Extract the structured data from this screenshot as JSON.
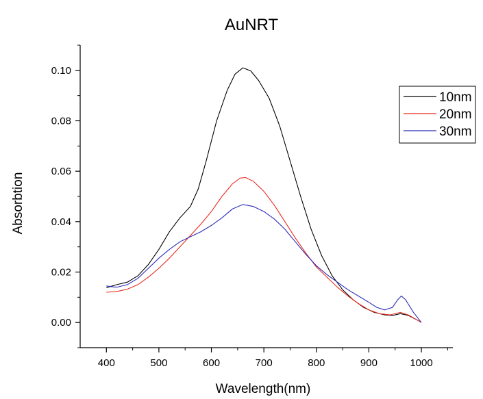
{
  "chart_data": {
    "type": "line",
    "title": "AuNRT",
    "xlabel": "Wavelength(nm)",
    "ylabel": "Absorbtion",
    "xlim": [
      350,
      1060
    ],
    "ylim": [
      -0.01,
      0.11
    ],
    "xticks": [
      400,
      500,
      600,
      700,
      800,
      900,
      1000
    ],
    "xtick_labels": [
      "400",
      "500",
      "600",
      "700",
      "800",
      "900",
      "1000"
    ],
    "yticks": [
      0.0,
      0.02,
      0.04,
      0.06,
      0.08,
      0.1
    ],
    "ytick_labels": [
      "0.00",
      "0.02",
      "0.04",
      "0.06",
      "0.08",
      "0.10"
    ],
    "grid": false,
    "legend_position": "top-right",
    "series": [
      {
        "name": "10nm",
        "color": "#000000",
        "points": [
          [
            400,
            0.0138
          ],
          [
            420,
            0.015
          ],
          [
            440,
            0.016
          ],
          [
            460,
            0.0185
          ],
          [
            480,
            0.023
          ],
          [
            500,
            0.029
          ],
          [
            520,
            0.036
          ],
          [
            540,
            0.0415
          ],
          [
            560,
            0.046
          ],
          [
            575,
            0.053
          ],
          [
            590,
            0.064
          ],
          [
            610,
            0.08
          ],
          [
            630,
            0.092
          ],
          [
            645,
            0.0985
          ],
          [
            660,
            0.101
          ],
          [
            675,
            0.0998
          ],
          [
            690,
            0.096
          ],
          [
            710,
            0.089
          ],
          [
            730,
            0.078
          ],
          [
            750,
            0.064
          ],
          [
            770,
            0.05
          ],
          [
            790,
            0.037
          ],
          [
            810,
            0.0265
          ],
          [
            830,
            0.0185
          ],
          [
            850,
            0.013
          ],
          [
            870,
            0.009
          ],
          [
            890,
            0.006
          ],
          [
            910,
            0.004
          ],
          [
            930,
            0.003
          ],
          [
            945,
            0.0028
          ],
          [
            960,
            0.0035
          ],
          [
            975,
            0.0028
          ],
          [
            990,
            0.0012
          ],
          [
            1000,
            0.0
          ]
        ]
      },
      {
        "name": "20nm",
        "color": "#e8291c",
        "points": [
          [
            400,
            0.012
          ],
          [
            420,
            0.0123
          ],
          [
            440,
            0.0132
          ],
          [
            460,
            0.015
          ],
          [
            480,
            0.018
          ],
          [
            500,
            0.0215
          ],
          [
            520,
            0.0255
          ],
          [
            540,
            0.03
          ],
          [
            560,
            0.0345
          ],
          [
            580,
            0.039
          ],
          [
            600,
            0.044
          ],
          [
            620,
            0.05
          ],
          [
            640,
            0.055
          ],
          [
            655,
            0.0573
          ],
          [
            665,
            0.0575
          ],
          [
            680,
            0.056
          ],
          [
            700,
            0.052
          ],
          [
            720,
            0.0465
          ],
          [
            740,
            0.04
          ],
          [
            760,
            0.0335
          ],
          [
            780,
            0.0275
          ],
          [
            800,
            0.022
          ],
          [
            820,
            0.018
          ],
          [
            840,
            0.014
          ],
          [
            860,
            0.0105
          ],
          [
            880,
            0.0075
          ],
          [
            900,
            0.005
          ],
          [
            920,
            0.0035
          ],
          [
            940,
            0.003
          ],
          [
            960,
            0.004
          ],
          [
            975,
            0.003
          ],
          [
            990,
            0.0012
          ],
          [
            1000,
            0.0
          ]
        ]
      },
      {
        "name": "30nm",
        "color": "#2a2ab8",
        "points": [
          [
            400,
            0.0145
          ],
          [
            410,
            0.0142
          ],
          [
            420,
            0.014
          ],
          [
            440,
            0.015
          ],
          [
            460,
            0.0175
          ],
          [
            480,
            0.0215
          ],
          [
            500,
            0.0255
          ],
          [
            520,
            0.029
          ],
          [
            540,
            0.032
          ],
          [
            560,
            0.034
          ],
          [
            580,
            0.036
          ],
          [
            600,
            0.0385
          ],
          [
            620,
            0.0415
          ],
          [
            640,
            0.045
          ],
          [
            660,
            0.0468
          ],
          [
            680,
            0.046
          ],
          [
            700,
            0.044
          ],
          [
            720,
            0.041
          ],
          [
            740,
            0.037
          ],
          [
            760,
            0.032
          ],
          [
            780,
            0.027
          ],
          [
            800,
            0.0225
          ],
          [
            820,
            0.019
          ],
          [
            840,
            0.016
          ],
          [
            860,
            0.013
          ],
          [
            880,
            0.0105
          ],
          [
            900,
            0.008
          ],
          [
            915,
            0.006
          ],
          [
            930,
            0.005
          ],
          [
            945,
            0.006
          ],
          [
            955,
            0.009
          ],
          [
            962,
            0.0105
          ],
          [
            970,
            0.009
          ],
          [
            985,
            0.004
          ],
          [
            1000,
            0.0
          ]
        ]
      }
    ]
  }
}
